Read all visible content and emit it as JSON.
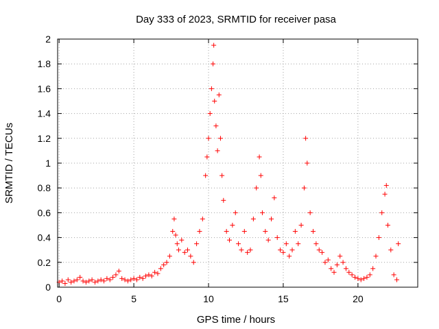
{
  "chart_data": {
    "type": "scatter",
    "title": "Day 333 of 2023, SRMTID for receiver pasa",
    "xlabel": "GPS time / hours",
    "ylabel": "SRMTID / TECUs",
    "xlim": [
      -0.1,
      24
    ],
    "ylim": [
      0,
      2
    ],
    "xticks": [
      0,
      5,
      10,
      15,
      20
    ],
    "xtick_labels": [
      "0",
      "5",
      "10",
      "15",
      "20"
    ],
    "yticks": [
      0,
      0.2,
      0.4,
      0.6,
      0.8,
      1.0,
      1.2,
      1.4,
      1.6,
      1.8,
      2.0
    ],
    "ytick_labels": [
      "0",
      "0.2",
      "0.4",
      "0.6",
      "0.8",
      "1",
      "1.2",
      "1.4",
      "1.6",
      "1.8",
      "2"
    ],
    "grid": true,
    "marker": "plus",
    "series": [
      {
        "name": "SRMTID",
        "color": "#ff0000",
        "x": [
          0.0,
          0.2,
          0.4,
          0.6,
          0.8,
          1.0,
          1.2,
          1.4,
          1.6,
          1.8,
          2.0,
          2.2,
          2.4,
          2.6,
          2.8,
          3.0,
          3.2,
          3.4,
          3.6,
          3.8,
          4.0,
          4.2,
          4.4,
          4.6,
          4.8,
          5.0,
          5.2,
          5.4,
          5.6,
          5.8,
          6.0,
          6.2,
          6.4,
          6.6,
          6.8,
          7.0,
          7.2,
          7.4,
          7.6,
          7.7,
          7.8,
          7.9,
          8.0,
          8.2,
          8.4,
          8.6,
          8.8,
          9.0,
          9.2,
          9.4,
          9.6,
          9.8,
          9.9,
          10.0,
          10.1,
          10.2,
          10.3,
          10.35,
          10.4,
          10.5,
          10.6,
          10.7,
          10.8,
          10.9,
          11.0,
          11.2,
          11.4,
          11.6,
          11.8,
          12.0,
          12.2,
          12.4,
          12.6,
          12.8,
          13.0,
          13.2,
          13.4,
          13.5,
          13.6,
          13.8,
          14.0,
          14.2,
          14.4,
          14.6,
          14.8,
          15.0,
          15.2,
          15.4,
          15.6,
          15.8,
          16.0,
          16.2,
          16.4,
          16.5,
          16.6,
          16.8,
          17.0,
          17.2,
          17.4,
          17.6,
          17.8,
          18.0,
          18.2,
          18.4,
          18.6,
          18.8,
          19.0,
          19.2,
          19.4,
          19.6,
          19.8,
          20.0,
          20.2,
          20.4,
          20.6,
          20.8,
          21.0,
          21.2,
          21.4,
          21.6,
          21.8,
          21.9,
          22.0,
          22.2,
          22.4,
          22.6,
          22.7
        ],
        "y": [
          0.04,
          0.05,
          0.03,
          0.06,
          0.04,
          0.05,
          0.06,
          0.08,
          0.05,
          0.04,
          0.05,
          0.06,
          0.04,
          0.05,
          0.06,
          0.05,
          0.07,
          0.06,
          0.08,
          0.1,
          0.13,
          0.07,
          0.06,
          0.05,
          0.06,
          0.07,
          0.06,
          0.08,
          0.07,
          0.09,
          0.1,
          0.09,
          0.12,
          0.11,
          0.15,
          0.18,
          0.2,
          0.25,
          0.45,
          0.55,
          0.42,
          0.35,
          0.3,
          0.38,
          0.28,
          0.3,
          0.25,
          0.2,
          0.35,
          0.45,
          0.55,
          0.9,
          1.05,
          1.2,
          1.4,
          1.6,
          1.8,
          1.95,
          1.5,
          1.3,
          1.1,
          1.55,
          1.2,
          0.9,
          0.7,
          0.45,
          0.38,
          0.5,
          0.6,
          0.35,
          0.3,
          0.45,
          0.28,
          0.3,
          0.55,
          0.8,
          1.05,
          0.9,
          0.6,
          0.45,
          0.38,
          0.55,
          0.72,
          0.4,
          0.3,
          0.28,
          0.35,
          0.25,
          0.3,
          0.45,
          0.35,
          0.5,
          0.8,
          1.2,
          1.0,
          0.6,
          0.45,
          0.35,
          0.3,
          0.28,
          0.2,
          0.22,
          0.15,
          0.12,
          0.18,
          0.25,
          0.2,
          0.15,
          0.12,
          0.1,
          0.08,
          0.07,
          0.06,
          0.07,
          0.08,
          0.1,
          0.15,
          0.25,
          0.4,
          0.6,
          0.75,
          0.82,
          0.5,
          0.3,
          0.1,
          0.06,
          0.35
        ]
      }
    ]
  }
}
